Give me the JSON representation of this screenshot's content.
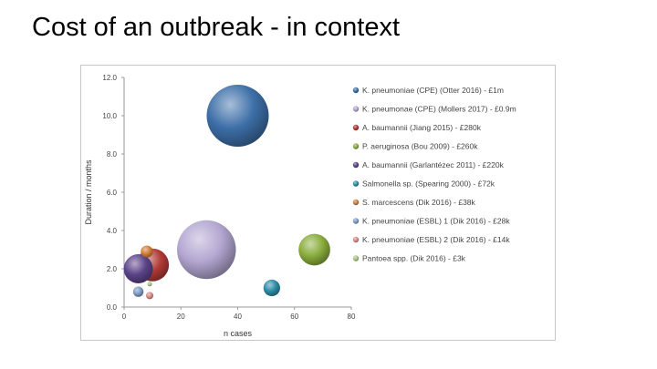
{
  "slide": {
    "title": "Cost of an outbreak - in context"
  },
  "chart_data": {
    "type": "bubble",
    "title": "",
    "xlabel": "n cases",
    "ylabel": "Duration / months",
    "xlim": [
      0,
      80
    ],
    "ylim": [
      0,
      12
    ],
    "xticks": [
      "0",
      "20",
      "40",
      "60",
      "80"
    ],
    "yticks": [
      "0.0",
      "2.0",
      "4.0",
      "6.0",
      "8.0",
      "10.0",
      "12.0"
    ],
    "grid": false,
    "legend_position": "right",
    "series": [
      {
        "name": "K. pneumoniae (CPE) (Otter 2016) - £1m",
        "x": 40,
        "y": 10.0,
        "cost_gbp": 1000000,
        "color": "#3d6fa8"
      },
      {
        "name": "K. pneumonae (CPE) (Mollers 2017) - £0.9m",
        "x": 29,
        "y": 3.0,
        "cost_gbp": 900000,
        "color": "#b3a6d1"
      },
      {
        "name": "A. baumannii (Jiang 2015) - £280k",
        "x": 10,
        "y": 2.2,
        "cost_gbp": 280000,
        "color": "#b03a36"
      },
      {
        "name": "P. aeruginosa (Bou 2009) - £260k",
        "x": 67,
        "y": 3.0,
        "cost_gbp": 260000,
        "color": "#89ac3c"
      },
      {
        "name": "A. baumannii (Garlantézec 2011) - £220k",
        "x": 5,
        "y": 2.0,
        "cost_gbp": 220000,
        "color": "#5c4389"
      },
      {
        "name": "Salmonella sp. (Spearing 2000) - £72k",
        "x": 52,
        "y": 1.0,
        "cost_gbp": 72000,
        "color": "#2a8ba6"
      },
      {
        "name": "S. marcescens (Dik 2016) - £38k",
        "x": 8,
        "y": 2.9,
        "cost_gbp": 38000,
        "color": "#d17d35"
      },
      {
        "name": "K. pneumoniae (ESBL) 1 (Dik 2016) - £28k",
        "x": 5,
        "y": 0.8,
        "cost_gbp": 28000,
        "color": "#7e9bc4"
      },
      {
        "name": "K. pneumoniae (ESBL) 2 (Dik 2016) - £14k",
        "x": 9,
        "y": 0.6,
        "cost_gbp": 14000,
        "color": "#d68a88"
      },
      {
        "name": "Pantoea spp. (Dik 2016) - £3k",
        "x": 9,
        "y": 1.2,
        "cost_gbp": 3000,
        "color": "#a7c584"
      }
    ]
  }
}
